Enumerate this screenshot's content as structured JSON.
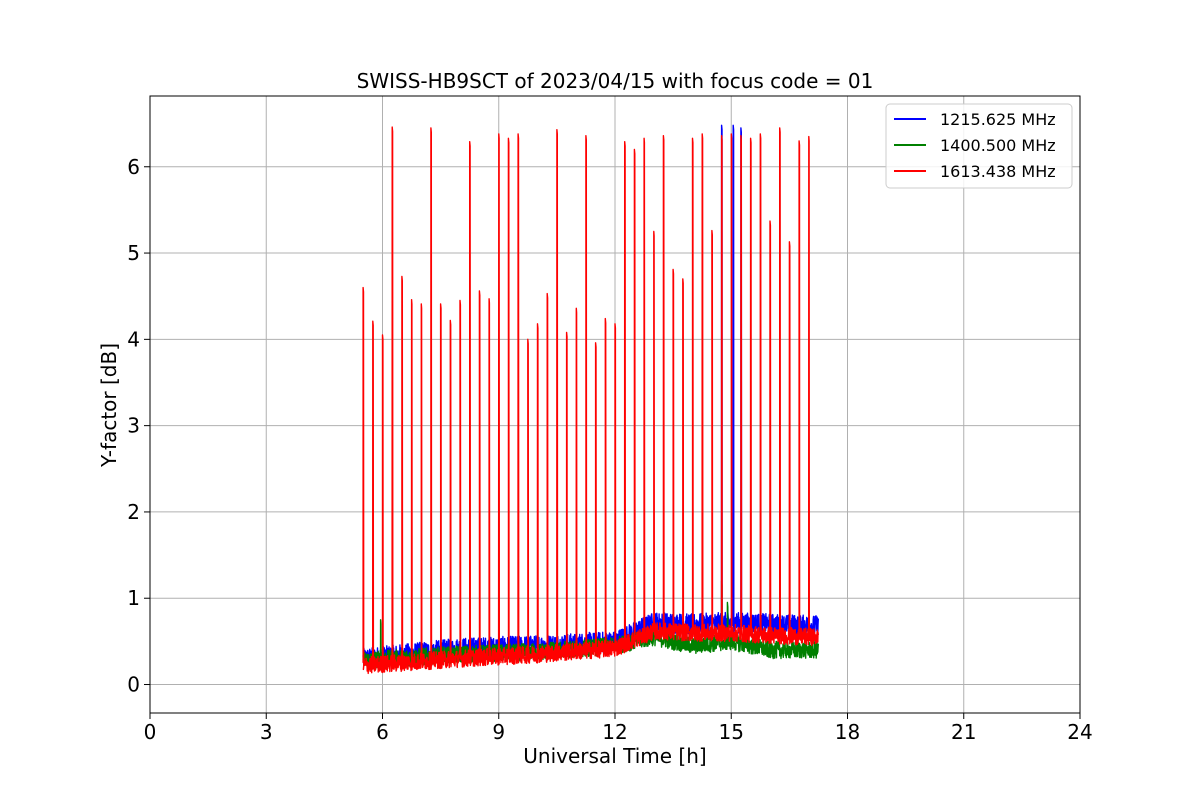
{
  "chart_data": {
    "type": "line",
    "title": "SWISS-HB9SCT of 2023/04/15 with focus code = 01",
    "xlabel": "Universal Time [h]",
    "ylabel": "Y-factor [dB]",
    "xlim": [
      0,
      24
    ],
    "ylim": [
      -0.33,
      6.82
    ],
    "xticks": [
      0,
      3,
      6,
      9,
      12,
      15,
      18,
      21,
      24
    ],
    "yticks": [
      0,
      1,
      2,
      3,
      4,
      5,
      6
    ],
    "grid": true,
    "legend_position": "top-right",
    "time_range": [
      5.5,
      17.25
    ],
    "series": [
      {
        "name": "1215.625 MHz",
        "color": "#0000ff",
        "baseline": [
          [
            5.5,
            0.3
          ],
          [
            8.0,
            0.42
          ],
          [
            10.0,
            0.45
          ],
          [
            12.0,
            0.5
          ],
          [
            13.0,
            0.72
          ],
          [
            14.0,
            0.7
          ],
          [
            15.0,
            0.72
          ],
          [
            16.0,
            0.7
          ],
          [
            17.25,
            0.68
          ]
        ],
        "noise": 0.12,
        "spikes": [
          [
            14.75,
            6.48
          ],
          [
            15.05,
            6.48
          ],
          [
            15.25,
            6.45
          ]
        ]
      },
      {
        "name": "1400.500 MHz",
        "color": "#008000",
        "baseline": [
          [
            5.5,
            0.28
          ],
          [
            8.0,
            0.35
          ],
          [
            10.0,
            0.38
          ],
          [
            12.0,
            0.45
          ],
          [
            13.0,
            0.55
          ],
          [
            14.0,
            0.45
          ],
          [
            15.0,
            0.5
          ],
          [
            16.0,
            0.4
          ],
          [
            17.25,
            0.4
          ]
        ],
        "noise": 0.1,
        "spikes": [
          [
            5.95,
            0.75
          ],
          [
            14.75,
            1.2
          ],
          [
            14.9,
            0.95
          ]
        ]
      },
      {
        "name": "1613.438 MHz",
        "color": "#ff0000",
        "baseline": [
          [
            5.5,
            0.22
          ],
          [
            8.0,
            0.3
          ],
          [
            10.0,
            0.35
          ],
          [
            12.0,
            0.42
          ],
          [
            13.0,
            0.62
          ],
          [
            14.0,
            0.6
          ],
          [
            15.0,
            0.6
          ],
          [
            16.0,
            0.57
          ],
          [
            17.25,
            0.55
          ]
        ],
        "noise": 0.1,
        "spikes": [
          [
            5.5,
            4.6
          ],
          [
            5.75,
            4.21
          ],
          [
            6.0,
            4.05
          ],
          [
            6.25,
            6.46
          ],
          [
            6.5,
            4.73
          ],
          [
            6.75,
            4.46
          ],
          [
            7.0,
            4.41
          ],
          [
            7.25,
            6.45
          ],
          [
            7.5,
            4.41
          ],
          [
            7.75,
            4.22
          ],
          [
            8.0,
            4.45
          ],
          [
            8.25,
            6.29
          ],
          [
            8.5,
            4.56
          ],
          [
            8.75,
            4.47
          ],
          [
            9.0,
            6.38
          ],
          [
            9.25,
            6.33
          ],
          [
            9.5,
            6.38
          ],
          [
            9.75,
            4.0
          ],
          [
            10.0,
            4.18
          ],
          [
            10.25,
            4.53
          ],
          [
            10.5,
            6.43
          ],
          [
            10.75,
            4.08
          ],
          [
            11.0,
            4.36
          ],
          [
            11.25,
            6.36
          ],
          [
            11.5,
            3.96
          ],
          [
            11.75,
            4.24
          ],
          [
            12.0,
            4.18
          ],
          [
            12.25,
            6.29
          ],
          [
            12.5,
            6.2
          ],
          [
            12.75,
            6.33
          ],
          [
            13.0,
            5.25
          ],
          [
            13.25,
            6.36
          ],
          [
            13.5,
            4.81
          ],
          [
            13.75,
            4.7
          ],
          [
            14.0,
            6.33
          ],
          [
            14.25,
            6.38
          ],
          [
            14.5,
            5.26
          ],
          [
            14.75,
            6.36
          ],
          [
            15.0,
            6.38
          ],
          [
            15.25,
            6.36
          ],
          [
            15.5,
            6.33
          ],
          [
            15.75,
            6.38
          ],
          [
            16.0,
            5.37
          ],
          [
            16.25,
            6.45
          ],
          [
            16.5,
            5.13
          ],
          [
            16.75,
            6.3
          ],
          [
            17.0,
            6.35
          ]
        ]
      }
    ]
  }
}
